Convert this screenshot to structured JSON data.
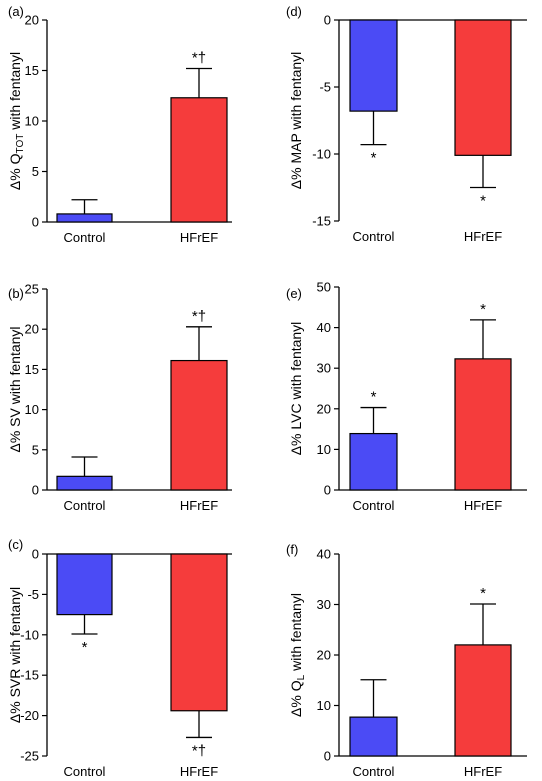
{
  "colors": {
    "control": "#4b4bf5",
    "hfref": "#f53c3c"
  },
  "chart_data": [
    {
      "panel": "(a)",
      "type": "bar",
      "ylabel_prefix": "Δ% Q",
      "ylabel_sub": "TOT",
      "ylabel_suffix": " with fentanyl",
      "ylim": [
        0,
        20
      ],
      "yticks": [
        0,
        5,
        10,
        15,
        20
      ],
      "categories": [
        "Control",
        "HFrEF"
      ],
      "values": [
        0.8,
        12.3
      ],
      "errors": [
        1.4,
        2.9
      ],
      "annotations": [
        "",
        "*†"
      ]
    },
    {
      "panel": "(b)",
      "type": "bar",
      "ylabel_prefix": "Δ% SV with fentanyl",
      "ylabel_sub": "",
      "ylabel_suffix": "",
      "ylim": [
        0,
        25
      ],
      "yticks": [
        0,
        5,
        10,
        15,
        20,
        25
      ],
      "categories": [
        "Control",
        "HFrEF"
      ],
      "values": [
        1.7,
        16.1
      ],
      "errors": [
        2.4,
        4.2
      ],
      "annotations": [
        "",
        "*†"
      ]
    },
    {
      "panel": "(c)",
      "type": "bar",
      "ylabel_prefix": "Δ% SVR with fentanyl",
      "ylabel_sub": "",
      "ylabel_suffix": "",
      "ylim": [
        -25,
        0
      ],
      "yticks": [
        0,
        -5,
        -10,
        -15,
        -20,
        -25
      ],
      "categories": [
        "Control",
        "HFrEF"
      ],
      "values": [
        -7.5,
        -19.4
      ],
      "errors": [
        2.4,
        3.3
      ],
      "annotations": [
        "*",
        "*†"
      ]
    },
    {
      "panel": "(d)",
      "type": "bar",
      "ylabel_prefix": "Δ% MAP with fentanyl",
      "ylabel_sub": "",
      "ylabel_suffix": "",
      "ylim": [
        -15,
        0
      ],
      "yticks": [
        0,
        -5,
        -10,
        -15
      ],
      "categories": [
        "Control",
        "HFrEF"
      ],
      "values": [
        -6.8,
        -10.1
      ],
      "errors": [
        2.5,
        2.4
      ],
      "annotations": [
        "*",
        "*"
      ]
    },
    {
      "panel": "(e)",
      "type": "bar",
      "ylabel_prefix": "Δ% LVC with fentanyl",
      "ylabel_sub": "",
      "ylabel_suffix": "",
      "ylim": [
        0,
        50
      ],
      "yticks": [
        0,
        10,
        20,
        30,
        40,
        50
      ],
      "categories": [
        "Control",
        "HFrEF"
      ],
      "values": [
        13.9,
        32.3
      ],
      "errors": [
        6.4,
        9.6
      ],
      "annotations": [
        "*",
        "*"
      ]
    },
    {
      "panel": "(f)",
      "type": "bar",
      "ylabel_prefix": "Δ% Q",
      "ylabel_sub": "L",
      "ylabel_suffix": " with fentanyl",
      "ylim": [
        0,
        40
      ],
      "yticks": [
        0,
        10,
        20,
        30,
        40
      ],
      "categories": [
        "Control",
        "HFrEF"
      ],
      "values": [
        7.7,
        22.0
      ],
      "errors": [
        7.4,
        8.1
      ],
      "annotations": [
        "",
        "*"
      ]
    }
  ]
}
